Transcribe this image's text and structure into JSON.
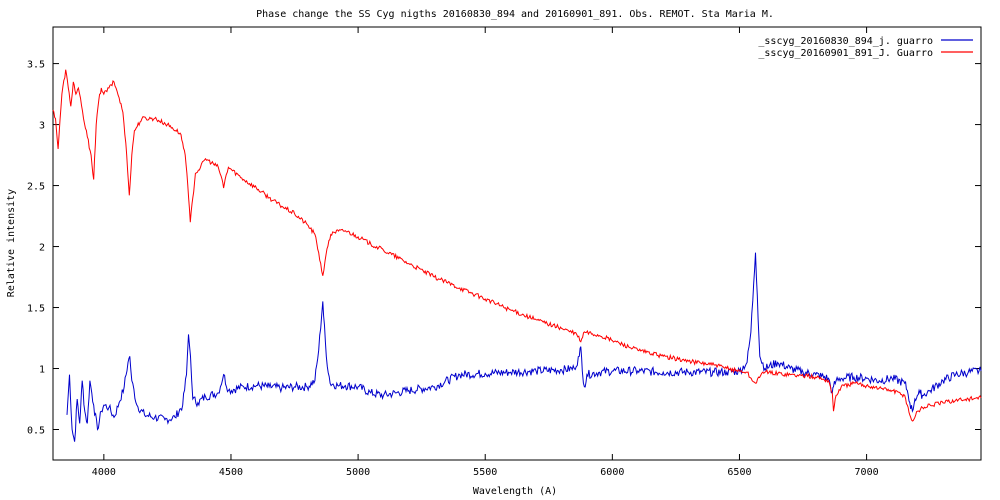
{
  "chart_data": {
    "type": "line",
    "title": "Phase change the SS Cyg  nigths 20160830_894 and 20160901_891.  Obs. REMOT. Sta Maria M.",
    "xlabel": "Wavelength (A)",
    "ylabel": "Relative intensity",
    "xlim": [
      3800,
      7450
    ],
    "ylim": [
      0.25,
      3.8
    ],
    "xticks": [
      4000,
      4500,
      5000,
      5500,
      6000,
      6500,
      7000
    ],
    "yticks": [
      0.5,
      1,
      1.5,
      2,
      2.5,
      3,
      3.5
    ],
    "ytick_labels": [
      "0.5",
      "1",
      "1.5",
      "2",
      "2.5",
      "3",
      "3.5"
    ],
    "grid": false,
    "legend_position": "top-right",
    "series": [
      {
        "name": "_sscyg_20160830_894_j. guarro",
        "color": "#0000cc",
        "x": [
          3855,
          3865,
          3875,
          3885,
          3895,
          3905,
          3915,
          3925,
          3935,
          3945,
          3960,
          3975,
          3990,
          4000,
          4020,
          4040,
          4060,
          4080,
          4095,
          4102,
          4110,
          4130,
          4160,
          4200,
          4240,
          4280,
          4310,
          4325,
          4333,
          4341,
          4350,
          4370,
          4400,
          4450,
          4471,
          4490,
          4550,
          4600,
          4650,
          4700,
          4750,
          4800,
          4830,
          4845,
          4861,
          4875,
          4890,
          4920,
          4950,
          5000,
          5050,
          5100,
          5150,
          5200,
          5300,
          5400,
          5500,
          5600,
          5700,
          5800,
          5850,
          5870,
          5876,
          5882,
          5890,
          5900,
          5950,
          6000,
          6100,
          6200,
          6300,
          6400,
          6450,
          6500,
          6530,
          6545,
          6556,
          6563,
          6570,
          6580,
          6600,
          6650,
          6700,
          6750,
          6800,
          6850,
          6865,
          6870,
          6880,
          6900,
          6950,
          7000,
          7050,
          7100,
          7150,
          7160,
          7170,
          7180,
          7190,
          7200,
          7210,
          7220,
          7250,
          7300,
          7350,
          7400,
          7450
        ],
        "values": [
          0.62,
          0.95,
          0.5,
          0.4,
          0.75,
          0.55,
          0.9,
          0.65,
          0.55,
          0.9,
          0.7,
          0.5,
          0.65,
          0.7,
          0.68,
          0.6,
          0.72,
          0.85,
          1.05,
          1.1,
          0.9,
          0.7,
          0.62,
          0.6,
          0.58,
          0.6,
          0.7,
          0.95,
          1.28,
          1.1,
          0.75,
          0.72,
          0.77,
          0.8,
          0.95,
          0.82,
          0.85,
          0.86,
          0.85,
          0.84,
          0.85,
          0.85,
          0.9,
          1.15,
          1.55,
          1.1,
          0.88,
          0.86,
          0.86,
          0.85,
          0.8,
          0.78,
          0.8,
          0.82,
          0.85,
          0.95,
          0.96,
          0.97,
          0.98,
          0.99,
          1.0,
          1.1,
          1.18,
          0.98,
          0.85,
          0.95,
          0.97,
          0.98,
          0.98,
          0.97,
          0.97,
          0.97,
          0.97,
          0.98,
          1.05,
          1.3,
          1.7,
          1.95,
          1.6,
          1.1,
          1.0,
          1.05,
          1.0,
          0.97,
          0.95,
          0.92,
          0.8,
          0.85,
          0.9,
          0.92,
          0.93,
          0.92,
          0.9,
          0.92,
          0.88,
          0.82,
          0.72,
          0.65,
          0.75,
          0.78,
          0.8,
          0.78,
          0.82,
          0.9,
          0.95,
          0.97,
          0.98
        ]
      },
      {
        "name": "_sscyg_20160901_891_J. Guarro",
        "color": "#ff0000",
        "x": [
          3800,
          3810,
          3820,
          3835,
          3850,
          3860,
          3870,
          3880,
          3890,
          3900,
          3920,
          3935,
          3950,
          3960,
          3970,
          3980,
          3990,
          4000,
          4020,
          4040,
          4060,
          4075,
          4090,
          4100,
          4110,
          4120,
          4150,
          4200,
          4250,
          4300,
          4310,
          4320,
          4330,
          4340,
          4350,
          4360,
          4380,
          4400,
          4450,
          4465,
          4471,
          4477,
          4490,
          4550,
          4600,
          4650,
          4700,
          4750,
          4800,
          4830,
          4845,
          4861,
          4870,
          4885,
          4900,
          4950,
          5000,
          5050,
          5100,
          5200,
          5300,
          5400,
          5500,
          5600,
          5700,
          5800,
          5860,
          5876,
          5890,
          5950,
          6000,
          6100,
          6200,
          6300,
          6400,
          6450,
          6500,
          6530,
          6550,
          6563,
          6575,
          6600,
          6700,
          6800,
          6850,
          6865,
          6870,
          6880,
          6900,
          6950,
          7000,
          7050,
          7100,
          7150,
          7160,
          7170,
          7180,
          7190,
          7200,
          7220,
          7250,
          7300,
          7350,
          7400,
          7450
        ],
        "values": [
          3.12,
          3.05,
          2.8,
          3.25,
          3.45,
          3.3,
          3.15,
          3.35,
          3.25,
          3.3,
          3.05,
          2.9,
          2.75,
          2.55,
          3.0,
          3.2,
          3.3,
          3.25,
          3.3,
          3.35,
          3.22,
          3.1,
          2.75,
          2.42,
          2.75,
          2.95,
          3.05,
          3.05,
          3.0,
          2.93,
          2.85,
          2.75,
          2.5,
          2.2,
          2.4,
          2.6,
          2.65,
          2.72,
          2.65,
          2.55,
          2.48,
          2.55,
          2.65,
          2.55,
          2.48,
          2.4,
          2.33,
          2.27,
          2.18,
          2.1,
          1.95,
          1.76,
          1.88,
          2.05,
          2.12,
          2.13,
          2.08,
          2.02,
          1.97,
          1.86,
          1.75,
          1.66,
          1.57,
          1.48,
          1.4,
          1.33,
          1.28,
          1.22,
          1.3,
          1.27,
          1.23,
          1.15,
          1.1,
          1.06,
          1.03,
          1.0,
          0.98,
          0.97,
          0.9,
          0.88,
          0.93,
          0.97,
          0.95,
          0.93,
          0.9,
          0.8,
          0.65,
          0.78,
          0.85,
          0.88,
          0.86,
          0.84,
          0.82,
          0.78,
          0.7,
          0.62,
          0.57,
          0.6,
          0.65,
          0.68,
          0.7,
          0.72,
          0.74,
          0.75,
          0.76
        ]
      }
    ]
  }
}
